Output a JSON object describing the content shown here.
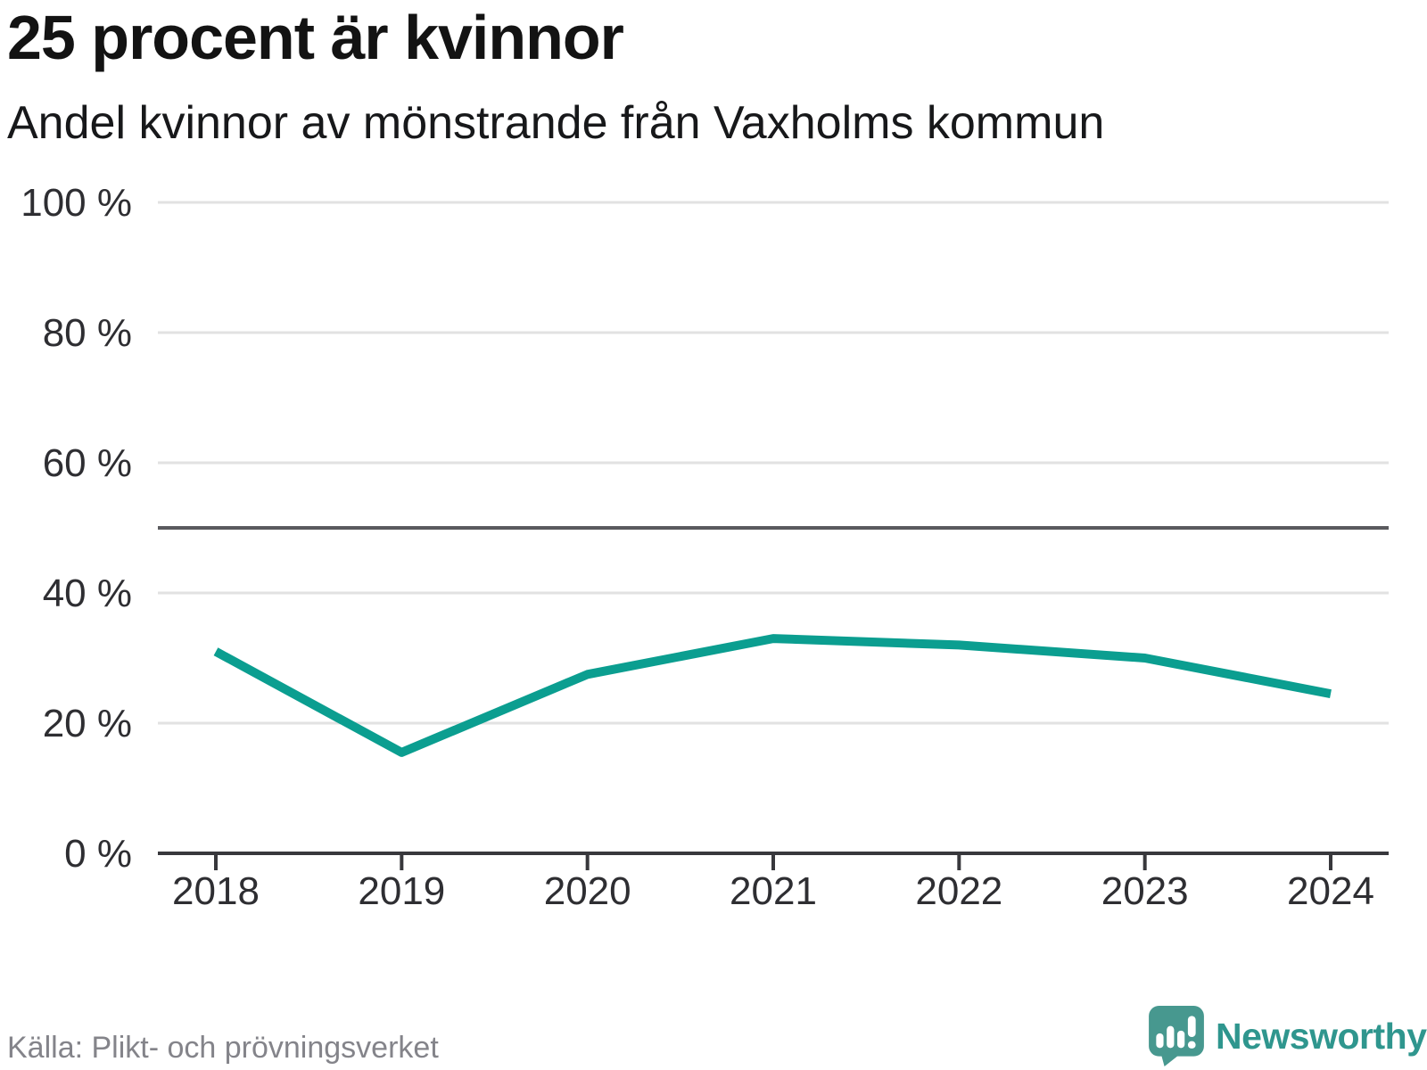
{
  "chart_data": {
    "type": "line",
    "title": "25 procent är kvinnor",
    "subtitle": "Andel kvinnor av mönstrande från Vaxholms kommun",
    "x": [
      2018,
      2019,
      2020,
      2021,
      2022,
      2023,
      2024
    ],
    "xtick_labels": [
      "2018",
      "2019",
      "2020",
      "2021",
      "2022",
      "2023",
      "2024"
    ],
    "series": [
      {
        "name": "Andel kvinnor av mönstrande",
        "values": [
          31,
          15.5,
          27.5,
          33,
          32,
          30,
          24.5
        ]
      }
    ],
    "ylim": [
      0,
      100
    ],
    "yticks": [
      0,
      20,
      40,
      60,
      80,
      100
    ],
    "ytick_labels": [
      "0 %",
      "20 %",
      "40 %",
      "60 %",
      "80 %",
      "100 %"
    ],
    "reference_line": 50,
    "grid": true,
    "legend": "none",
    "line_color": "#0b9e90"
  },
  "colors": {
    "grid": "#e2e2e2",
    "axis": "#38383c",
    "reference": "#5a5a5e",
    "tick_label": "#2e2e32",
    "line": "#0b9e90",
    "brand_teal": "#2f968e",
    "logo_teal": "#47988f",
    "source_gray": "#84848a"
  },
  "footer": {
    "source": "Källa: Plikt- och prövningsverket",
    "brand": "Newsworthy"
  }
}
